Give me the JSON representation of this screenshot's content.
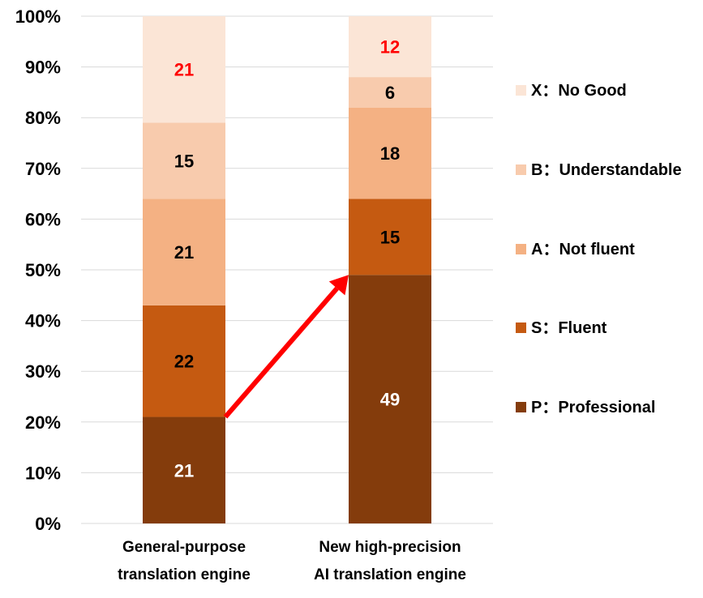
{
  "chart_data": {
    "type": "bar",
    "stacked": true,
    "categories": [
      [
        "General-purpose",
        "translation engine"
      ],
      [
        "New high-precision",
        "AI translation engine"
      ]
    ],
    "series": [
      {
        "name": "P：Professional",
        "color": "#843C0C",
        "values": [
          21,
          49
        ]
      },
      {
        "name": "S：Fluent",
        "color": "#C55A11",
        "values": [
          22,
          15
        ]
      },
      {
        "name": "A：Not fluent",
        "color": "#F4B183",
        "values": [
          21,
          18
        ]
      },
      {
        "name": "B：Understandable",
        "color": "#F8CBAD",
        "values": [
          15,
          6
        ]
      },
      {
        "name": "X：No Good",
        "color": "#FBE5D6",
        "values": [
          21,
          12
        ]
      }
    ],
    "label_colors": {
      "default": "#000000",
      "on_dark": "#ffffff",
      "highlight": "#FF0000"
    },
    "highlight_series": "X：No Good",
    "y_ticks": [
      "0%",
      "10%",
      "20%",
      "30%",
      "40%",
      "50%",
      "60%",
      "70%",
      "80%",
      "90%",
      "100%"
    ],
    "ylim": [
      0,
      100
    ],
    "grid": true,
    "legend_position": "right",
    "annotation": {
      "type": "arrow",
      "color": "#FF0000",
      "from": {
        "category": 0,
        "y": 21
      },
      "to": {
        "category": 1,
        "y": 49
      }
    }
  }
}
